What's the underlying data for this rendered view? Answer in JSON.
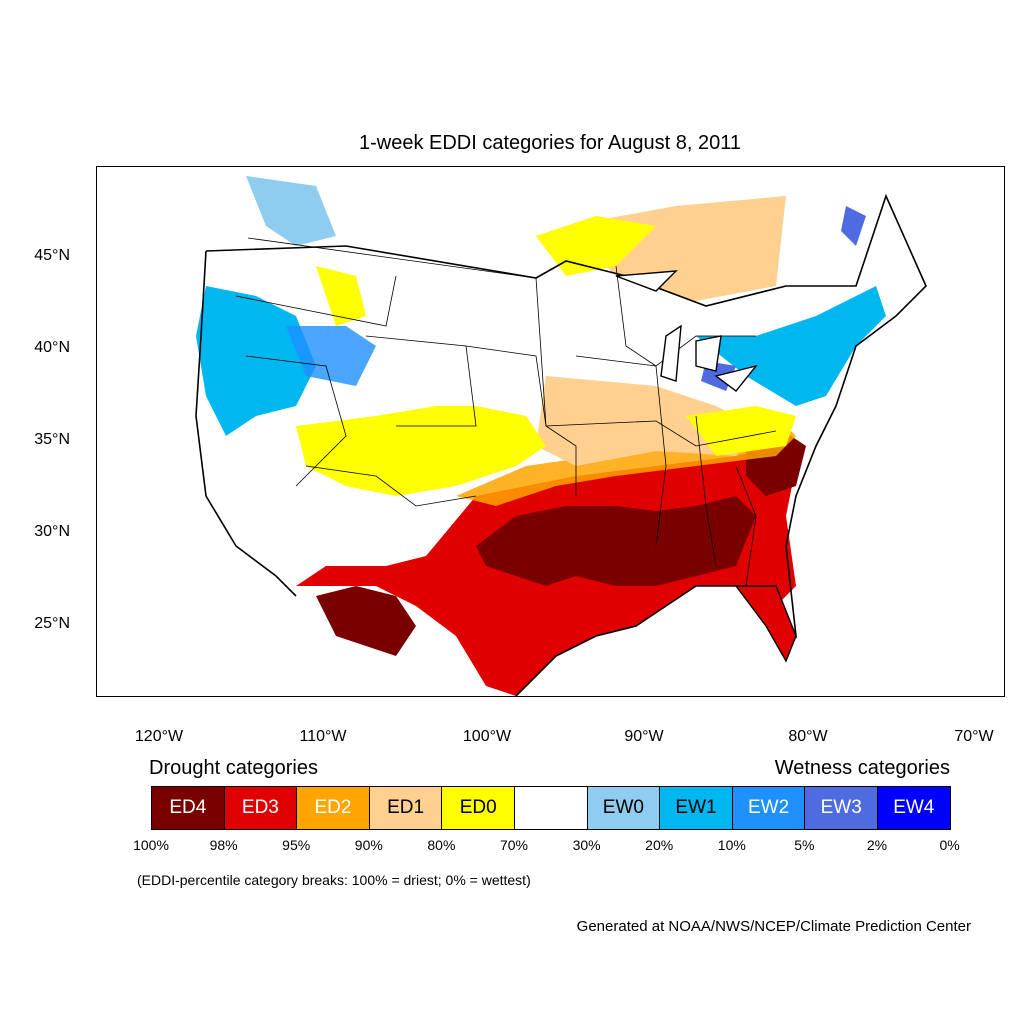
{
  "title": "1-week EDDI categories for August 8, 2011",
  "lat_labels": [
    "45°N",
    "40°N",
    "35°N",
    "30°N",
    "25°N"
  ],
  "lon_labels": [
    "120°W",
    "110°W",
    "100°W",
    "90°W",
    "80°W",
    "70°W"
  ],
  "legend": {
    "drought_heading": "Drought categories",
    "wetness_heading": "Wetness categories",
    "categories": [
      {
        "label": "ED4",
        "color": "#7a0000"
      },
      {
        "label": "ED3",
        "color": "#e00000"
      },
      {
        "label": "ED2",
        "color": "#ffa500"
      },
      {
        "label": "ED1",
        "color": "#ffd090"
      },
      {
        "label": "ED0",
        "color": "#ffff00"
      },
      {
        "label": "",
        "color": "#ffffff"
      },
      {
        "label": "EW0",
        "color": "#8ecdf0"
      },
      {
        "label": "EW1",
        "color": "#00b7f0"
      },
      {
        "label": "EW2",
        "color": "#1e90ff"
      },
      {
        "label": "EW3",
        "color": "#4f6be0"
      },
      {
        "label": "EW4",
        "color": "#0000ff"
      }
    ],
    "breaks": [
      "100%",
      "98%",
      "95%",
      "90%",
      "80%",
      "70%",
      "30%",
      "20%",
      "10%",
      "5%",
      "2%",
      "0%"
    ],
    "note": "(EDDI-percentile category breaks: 100% = driest; 0% = wettest)"
  },
  "credit": "Generated at NOAA/NWS/NCEP/Climate Prediction Center"
}
